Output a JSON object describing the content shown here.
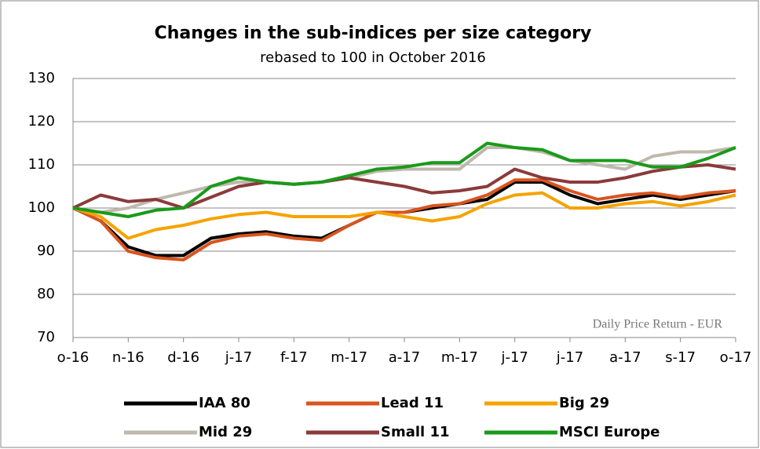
{
  "chart_data": {
    "type": "line",
    "title": "Changes in the sub-indices per size category",
    "subtitle": "rebased to 100 in October 2016",
    "annotation": "Daily Price Return - EUR",
    "categories": [
      "o-16",
      null,
      "n-16",
      null,
      "d-16",
      null,
      "j-17",
      null,
      "f-17",
      null,
      "m-17",
      null,
      "a-17",
      null,
      "m-17",
      null,
      "j-17",
      null,
      "j-17",
      null,
      "a-17",
      null,
      "s-17",
      null,
      "o-17"
    ],
    "ylim": [
      70,
      130
    ],
    "yticks": [
      70,
      80,
      90,
      100,
      110,
      120,
      130
    ],
    "grid": true,
    "legend": "bottom",
    "series": [
      {
        "name": "IAA 80",
        "color": "#000000",
        "values": [
          100,
          97,
          91,
          89,
          89,
          93,
          94,
          94.5,
          93.5,
          93,
          96,
          99,
          99,
          100,
          101,
          102,
          106,
          106,
          103,
          101,
          102,
          103,
          102,
          103,
          104
        ]
      },
      {
        "name": "Lead 11",
        "color": "#d9541e",
        "values": [
          100,
          97,
          90,
          88.5,
          88,
          92,
          93.5,
          94,
          93,
          92.5,
          96,
          99,
          99,
          100.5,
          101,
          103,
          106.5,
          106.5,
          104,
          102,
          103,
          103.5,
          102.5,
          103.5,
          104
        ]
      },
      {
        "name": "Big 29",
        "color": "#f5a300",
        "values": [
          100,
          98,
          93,
          95,
          96,
          97.5,
          98.5,
          99,
          98,
          98,
          98,
          99,
          98,
          97,
          98,
          101,
          103,
          103.5,
          100,
          100,
          101,
          101.5,
          100.5,
          101.5,
          103
        ]
      },
      {
        "name": "Mid 29",
        "color": "#bfb8ad",
        "values": [
          100,
          99,
          100,
          102,
          103.5,
          105,
          106,
          106,
          105.5,
          106,
          107,
          108.5,
          109,
          109,
          109,
          114,
          114,
          113,
          111,
          110,
          109,
          112,
          113,
          113,
          114
        ]
      },
      {
        "name": "Small 11",
        "color": "#8b3a3a",
        "values": [
          100,
          103,
          101.5,
          102,
          100,
          102.5,
          105,
          106,
          105.5,
          106,
          107,
          106,
          105,
          103.5,
          104,
          105,
          109,
          107,
          106,
          106,
          107,
          108.5,
          109.5,
          110,
          109
        ]
      },
      {
        "name": "MSCI Europe",
        "color": "#1a9a1a",
        "values": [
          100,
          99,
          98,
          99.5,
          100,
          105,
          107,
          106,
          105.5,
          106,
          107.5,
          109,
          109.5,
          110.5,
          110.5,
          115,
          114,
          113.5,
          111,
          111,
          111,
          109.5,
          109.5,
          111.5,
          114
        ]
      }
    ]
  }
}
